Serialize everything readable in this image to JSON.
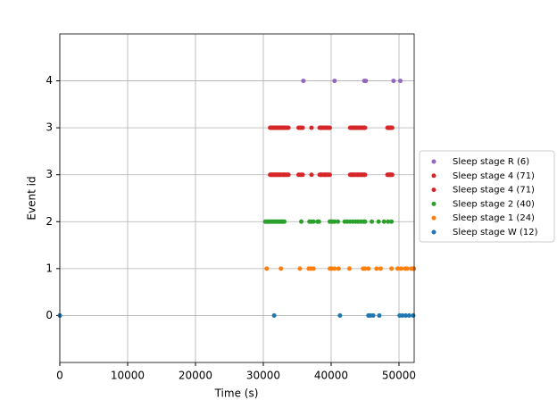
{
  "chart_data": {
    "type": "scatter",
    "xlabel": "Time (s)",
    "ylabel": "Event id",
    "xlim": [
      0,
      52240
    ],
    "ylim": [
      -1,
      6
    ],
    "xticks": [
      0,
      10000,
      20000,
      30000,
      40000,
      50000
    ],
    "yticks": [
      {
        "value": 0,
        "label": "0"
      },
      {
        "value": 1,
        "label": "1"
      },
      {
        "value": 2,
        "label": "2"
      },
      {
        "value": 3,
        "label": "3"
      },
      {
        "value": 4,
        "label": "3"
      },
      {
        "value": 5,
        "label": "4"
      }
    ],
    "grid": true,
    "legend": "outside right",
    "series": [
      {
        "name": "Sleep stage R (6)",
        "color": "#9467bd",
        "x": [
          35900,
          40500,
          44900,
          45100,
          49200,
          50200
        ],
        "values": [
          5,
          5,
          5,
          5,
          5,
          5
        ]
      },
      {
        "name": "Sleep stage 4 (71)",
        "color": "#d62728",
        "x": [
          31000,
          31150,
          31300,
          31450,
          31600,
          31750,
          31900,
          32050,
          32200,
          32350,
          32500,
          32650,
          32800,
          32950,
          33100,
          33250,
          33400,
          33550,
          33700,
          31200,
          31500,
          31800,
          32100,
          32400,
          33000,
          35200,
          35400,
          35600,
          35800,
          37100,
          38300,
          38450,
          38600,
          38750,
          38900,
          39050,
          39200,
          39350,
          39500,
          39650,
          39800,
          38500,
          39100,
          42800,
          42950,
          43100,
          43250,
          43400,
          43550,
          43700,
          43850,
          44000,
          44150,
          44300,
          44450,
          44600,
          44750,
          44900,
          45000,
          43000,
          43300,
          43900,
          44500,
          48300,
          48400,
          48500,
          48600,
          48700,
          48800,
          48900,
          49000
        ],
        "values": [
          4,
          4,
          4,
          4,
          4,
          4,
          4,
          4,
          4,
          4,
          4,
          4,
          4,
          4,
          4,
          4,
          4,
          4,
          4,
          4,
          4,
          4,
          4,
          4,
          4,
          4,
          4,
          4,
          4,
          4,
          4,
          4,
          4,
          4,
          4,
          4,
          4,
          4,
          4,
          4,
          4,
          4,
          4,
          4,
          4,
          4,
          4,
          4,
          4,
          4,
          4,
          4,
          4,
          4,
          4,
          4,
          4,
          4,
          4,
          4,
          4,
          4,
          4,
          4,
          4,
          4,
          4,
          4,
          4,
          4,
          4
        ]
      },
      {
        "name": "Sleep stage 4 (71)",
        "color": "#d62728",
        "x": [
          31000,
          31150,
          31300,
          31450,
          31600,
          31750,
          31900,
          32050,
          32200,
          32350,
          32500,
          32650,
          32800,
          32950,
          33100,
          33250,
          33400,
          33550,
          33700,
          31200,
          31500,
          31800,
          32100,
          32400,
          33000,
          35200,
          35400,
          35600,
          35800,
          37100,
          38300,
          38450,
          38600,
          38750,
          38900,
          39050,
          39200,
          39350,
          39500,
          39650,
          39800,
          38500,
          39100,
          42800,
          42950,
          43100,
          43250,
          43400,
          43550,
          43700,
          43850,
          44000,
          44150,
          44300,
          44450,
          44600,
          44750,
          44900,
          45000,
          43000,
          43300,
          43900,
          44500,
          48300,
          48400,
          48500,
          48600,
          48700,
          48800,
          48900,
          49000
        ],
        "values": [
          3,
          3,
          3,
          3,
          3,
          3,
          3,
          3,
          3,
          3,
          3,
          3,
          3,
          3,
          3,
          3,
          3,
          3,
          3,
          3,
          3,
          3,
          3,
          3,
          3,
          3,
          3,
          3,
          3,
          3,
          3,
          3,
          3,
          3,
          3,
          3,
          3,
          3,
          3,
          3,
          3,
          3,
          3,
          3,
          3,
          3,
          3,
          3,
          3,
          3,
          3,
          3,
          3,
          3,
          3,
          3,
          3,
          3,
          3,
          3,
          3,
          3,
          3,
          3,
          3,
          3,
          3,
          3,
          3,
          3,
          3
        ]
      },
      {
        "name": "Sleep stage 2 (40)",
        "color": "#2ca02c",
        "x": [
          30300,
          30500,
          30700,
          30900,
          31100,
          31300,
          31500,
          31700,
          31900,
          32100,
          32300,
          32500,
          32700,
          32900,
          33100,
          35600,
          36800,
          37100,
          37400,
          38000,
          38200,
          39800,
          40000,
          40200,
          40500,
          41000,
          42000,
          42400,
          42800,
          43200,
          43600,
          44000,
          44400,
          44800,
          45000,
          46000,
          47000,
          47800,
          48400,
          48900
        ],
        "values": [
          2,
          2,
          2,
          2,
          2,
          2,
          2,
          2,
          2,
          2,
          2,
          2,
          2,
          2,
          2,
          2,
          2,
          2,
          2,
          2,
          2,
          2,
          2,
          2,
          2,
          2,
          2,
          2,
          2,
          2,
          2,
          2,
          2,
          2,
          2,
          2,
          2,
          2,
          2,
          2
        ]
      },
      {
        "name": "Sleep stage 1 (24)",
        "color": "#ff7f0e",
        "x": [
          30500,
          32600,
          35400,
          36700,
          37000,
          37400,
          39800,
          40100,
          40500,
          41100,
          42700,
          44700,
          45000,
          45500,
          46700,
          47300,
          48900,
          49800,
          50300,
          50900,
          51200,
          51800,
          52000,
          52200
        ],
        "values": [
          1,
          1,
          1,
          1,
          1,
          1,
          1,
          1,
          1,
          1,
          1,
          1,
          1,
          1,
          1,
          1,
          1,
          1,
          1,
          1,
          1,
          1,
          1,
          1
        ]
      },
      {
        "name": "Sleep stage W (12)",
        "color": "#1f77b4",
        "x": [
          0,
          31600,
          41300,
          45500,
          45800,
          46200,
          47100,
          50100,
          50500,
          51000,
          51500,
          52100
        ],
        "values": [
          0,
          0,
          0,
          0,
          0,
          0,
          0,
          0,
          0,
          0,
          0,
          0
        ]
      }
    ]
  }
}
